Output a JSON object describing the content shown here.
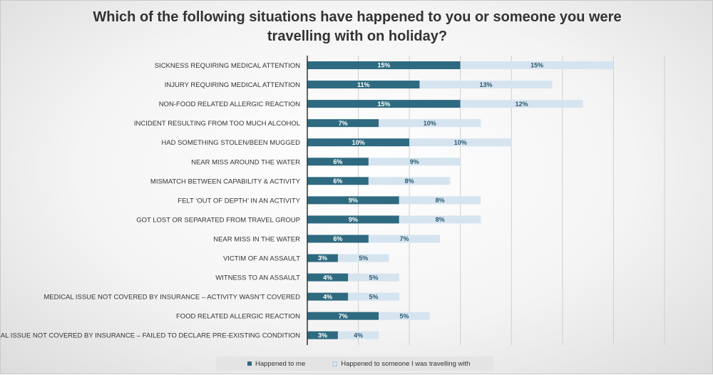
{
  "chart_data": {
    "type": "bar",
    "orientation": "horizontal",
    "stacked": true,
    "title": "Which of the following situations have happened to you or someone you were travelling with on holiday?",
    "categories": [
      "SICKNESS REQUIRING MEDICAL ATTENTION",
      "INJURY REQUIRING MEDICAL ATTENTION",
      "NON-FOOD RELATED ALLERGIC REACTION",
      "INCIDENT RESULTING FROM TOO MUCH ALCOHOL",
      "HAD SOMETHING STOLEN/BEEN MUGGED",
      "NEAR MISS AROUND THE WATER",
      "MISMATCH BETWEEN CAPABILITY & ACTIVITY",
      "FELT ‘OUT OF DEPTH’ IN AN ACTIVITY",
      "GOT LOST OR SEPARATED FROM TRAVEL GROUP",
      "NEAR MISS IN THE WATER",
      "VICTIM OF AN ASSAULT",
      "WITNESS TO AN ASSAULT",
      "MEDICAL ISSUE NOT COVERED BY INSURANCE – ACTIVITY WASN’T COVERED",
      "FOOD RELATED ALLERGIC REACTION",
      "MEDICAL ISSUE NOT COVERED BY INSURANCE – FAILED TO DECLARE PRE-EXISTING CONDITION"
    ],
    "series": [
      {
        "name": "Happened to me",
        "color": "#2e6a80",
        "label_color": "#ffffff",
        "values": [
          15,
          11,
          15,
          7,
          10,
          6,
          6,
          9,
          9,
          6,
          3,
          4,
          4,
          7,
          3
        ],
        "labels": [
          "15%",
          "11%",
          "15%",
          "7%",
          "10%",
          "6%",
          "6%",
          "9%",
          "9%",
          "6%",
          "3%",
          "4%",
          "4%",
          "7%",
          "3%"
        ]
      },
      {
        "name": "Happened to someone I was travelling with",
        "color": "#d6e4f0",
        "label_color": "#2a5a70",
        "values": [
          15,
          13,
          12,
          10,
          10,
          9,
          8,
          8,
          8,
          7,
          5,
          5,
          5,
          5,
          4
        ],
        "labels": [
          "15%",
          "13%",
          "12%",
          "10%",
          "10%",
          "9%",
          "8%",
          "8%",
          "8%",
          "7%",
          "5%",
          "5%",
          "5%",
          "5%",
          "4%"
        ]
      }
    ],
    "xlim": [
      0,
      35
    ],
    "grid": true,
    "legend_position": "bottom"
  }
}
